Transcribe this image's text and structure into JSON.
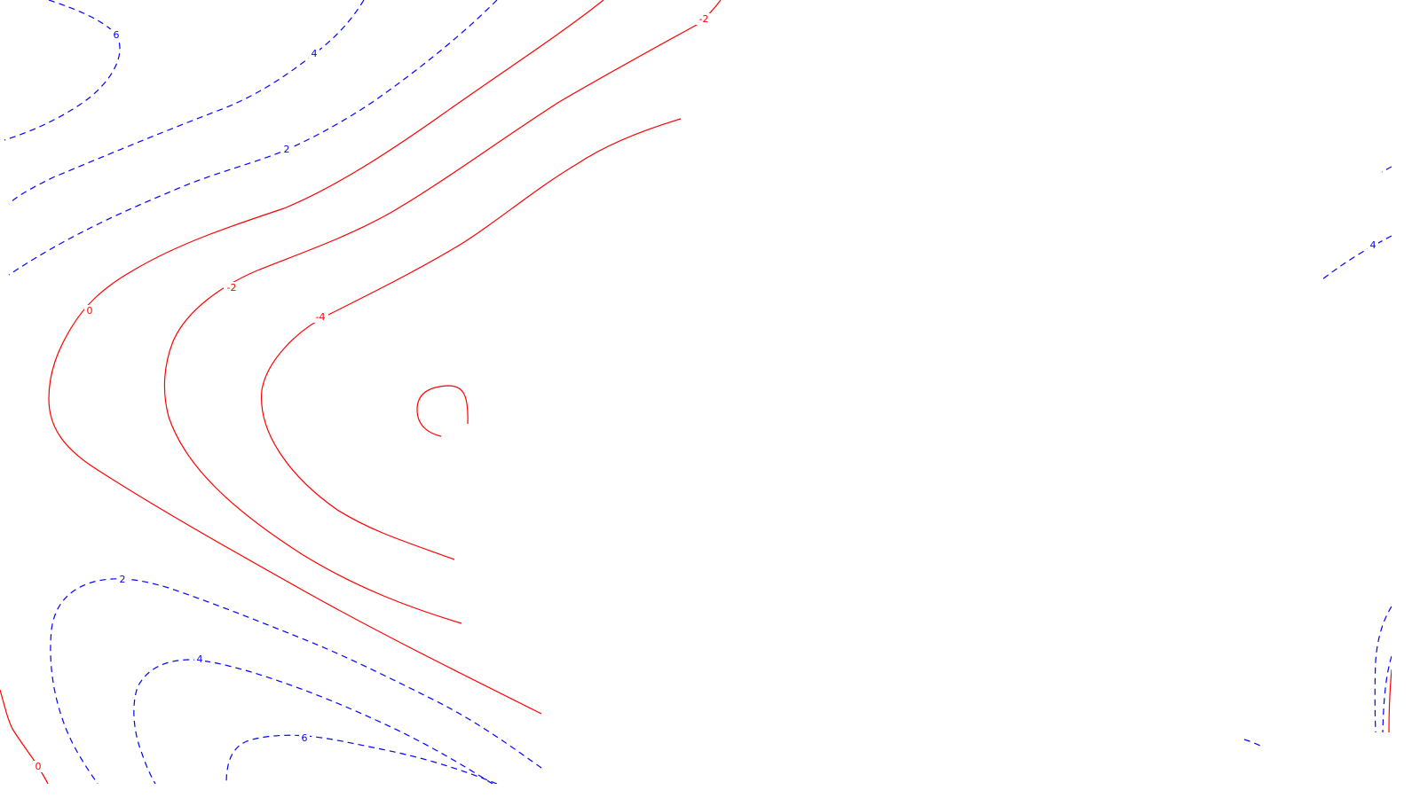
{
  "colors": {
    "positive": "#0000ff",
    "negative": "#ff0000",
    "background": "#ffffff"
  },
  "contour_labels": {
    "top_left_6": "6",
    "top_4": "4",
    "top_2": "2",
    "zero_left": "0",
    "neg2_left": "-2",
    "neg4_left": "-4",
    "neg2_top": "-2",
    "right_4": "4",
    "bottom_2": "2",
    "bottom_4": "4",
    "bottom_6": "6",
    "bottom_zero": "0"
  }
}
